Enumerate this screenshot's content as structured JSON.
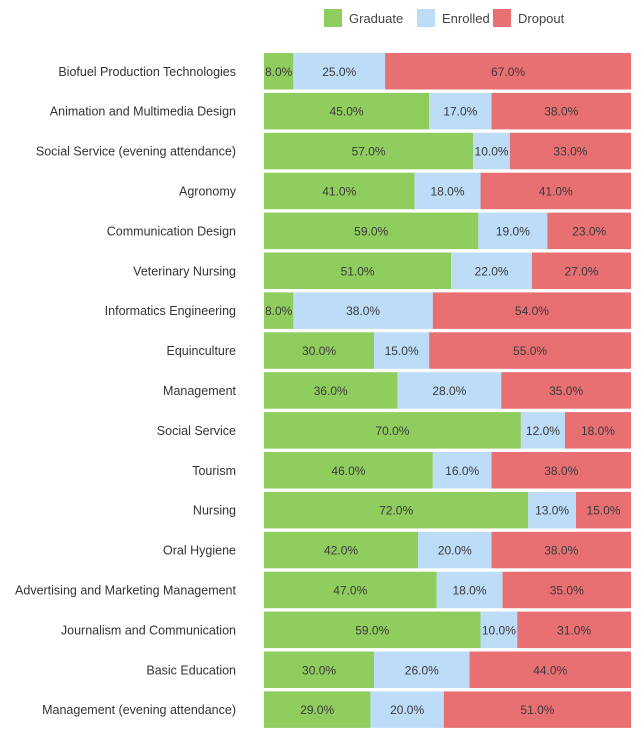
{
  "chart_data": {
    "type": "bar",
    "orientation": "horizontal",
    "stacked": true,
    "normalized": true,
    "legend_position": "top",
    "categories": [
      "Biofuel Production Technologies",
      "Animation and Multimedia Design",
      "Social Service (evening attendance)",
      "Agronomy",
      "Communication Design",
      "Veterinary Nursing",
      "Informatics Engineering",
      "Equinculture",
      "Management",
      "Social Service",
      "Tourism",
      "Nursing",
      "Oral Hygiene",
      "Advertising and Marketing Management",
      "Journalism and Communication",
      "Basic Education",
      "Management (evening attendance)"
    ],
    "series": [
      {
        "name": "Graduate",
        "color": "#8fcd5f",
        "values": [
          8,
          45,
          57,
          41,
          59,
          51,
          8,
          30,
          36,
          70,
          46,
          72,
          42,
          47,
          59,
          30,
          29
        ],
        "labels": [
          "8.0%",
          "45.0%",
          "57.0%",
          "41.0%",
          "59.0%",
          "51.0%",
          "8.0%",
          "30.0%",
          "36.0%",
          "70.0%",
          "46.0%",
          "72.0%",
          "42.0%",
          "47.0%",
          "59.0%",
          "30.0%",
          "29.0%"
        ]
      },
      {
        "name": "Enrolled",
        "color": "#bcdcf7",
        "values": [
          25,
          17,
          10,
          18,
          19,
          22,
          38,
          15,
          28,
          12,
          16,
          13,
          20,
          18,
          10,
          26,
          20
        ],
        "labels": [
          "25.0%",
          "17.0%",
          "10.0%",
          "18.0%",
          "19.0%",
          "22.0%",
          "38.0%",
          "15.0%",
          "28.0%",
          "12.0%",
          "16.0%",
          "13.0%",
          "20.0%",
          "18.0%",
          "10.0%",
          "26.0%",
          "20.0%"
        ]
      },
      {
        "name": "Dropout",
        "color": "#e87073",
        "values": [
          67,
          38,
          33,
          41,
          23,
          27,
          54,
          55,
          35,
          18,
          38,
          15,
          38,
          35,
          31,
          44,
          51
        ],
        "labels": [
          "67.0%",
          "38.0%",
          "33.0%",
          "41.0%",
          "23.0%",
          "27.0%",
          "54.0%",
          "55.0%",
          "35.0%",
          "18.0%",
          "38.0%",
          "15.0%",
          "38.0%",
          "35.0%",
          "31.0%",
          "44.0%",
          "51.0%"
        ]
      }
    ]
  }
}
